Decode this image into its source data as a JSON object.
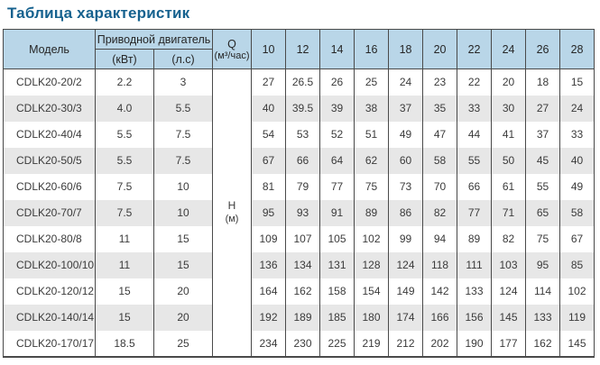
{
  "page_title": "Таблица характеристик",
  "chart_data": {
    "type": "table",
    "title": "Таблица характеристик",
    "headers": {
      "model": "Модель",
      "motor_group": "Приводной двигатель",
      "motor_units": [
        "(кВт)",
        "(л.с)"
      ],
      "flow_label": "Q",
      "flow_unit": "(м³/час)",
      "flow_values": [
        "10",
        "12",
        "14",
        "16",
        "18",
        "20",
        "22",
        "24",
        "26",
        "28"
      ],
      "head_label": "Н",
      "head_unit": "(м)"
    },
    "rows": [
      {
        "model": "CDLK20-20/2",
        "kw": "2.2",
        "hp": "3",
        "head_m": [
          "27",
          "26.5",
          "26",
          "25",
          "24",
          "23",
          "22",
          "20",
          "18",
          "15"
        ]
      },
      {
        "model": "CDLK20-30/3",
        "kw": "4.0",
        "hp": "5.5",
        "head_m": [
          "40",
          "39.5",
          "39",
          "38",
          "37",
          "35",
          "33",
          "30",
          "27",
          "24"
        ]
      },
      {
        "model": "CDLK20-40/4",
        "kw": "5.5",
        "hp": "7.5",
        "head_m": [
          "54",
          "53",
          "52",
          "51",
          "49",
          "47",
          "44",
          "41",
          "37",
          "33"
        ]
      },
      {
        "model": "CDLK20-50/5",
        "kw": "5.5",
        "hp": "7.5",
        "head_m": [
          "67",
          "66",
          "64",
          "62",
          "60",
          "58",
          "55",
          "50",
          "45",
          "40"
        ]
      },
      {
        "model": "CDLK20-60/6",
        "kw": "7.5",
        "hp": "10",
        "head_m": [
          "81",
          "79",
          "77",
          "75",
          "73",
          "70",
          "66",
          "61",
          "55",
          "49"
        ]
      },
      {
        "model": "CDLK20-70/7",
        "kw": "7.5",
        "hp": "10",
        "head_m": [
          "95",
          "93",
          "91",
          "89",
          "86",
          "82",
          "77",
          "71",
          "65",
          "58"
        ]
      },
      {
        "model": "CDLK20-80/8",
        "kw": "11",
        "hp": "15",
        "head_m": [
          "109",
          "107",
          "105",
          "102",
          "99",
          "94",
          "89",
          "82",
          "75",
          "67"
        ]
      },
      {
        "model": "CDLK20-100/10",
        "kw": "11",
        "hp": "15",
        "head_m": [
          "136",
          "134",
          "131",
          "128",
          "124",
          "118",
          "111",
          "103",
          "95",
          "85"
        ]
      },
      {
        "model": "CDLK20-120/12",
        "kw": "15",
        "hp": "20",
        "head_m": [
          "164",
          "162",
          "158",
          "154",
          "149",
          "142",
          "133",
          "124",
          "114",
          "102"
        ]
      },
      {
        "model": "CDLK20-140/14",
        "kw": "15",
        "hp": "20",
        "head_m": [
          "192",
          "189",
          "185",
          "180",
          "174",
          "166",
          "156",
          "145",
          "133",
          "119"
        ]
      },
      {
        "model": "CDLK20-170/17",
        "kw": "18.5",
        "hp": "25",
        "head_m": [
          "234",
          "230",
          "225",
          "219",
          "212",
          "202",
          "190",
          "177",
          "162",
          "145"
        ]
      }
    ]
  },
  "colors": {
    "title_text": "#15618e",
    "header_bg": "#b9d6e8",
    "row_alt_bg": "#e7e7e7",
    "border": "#4a4a4a",
    "cell_text": "#3b3b3b"
  }
}
